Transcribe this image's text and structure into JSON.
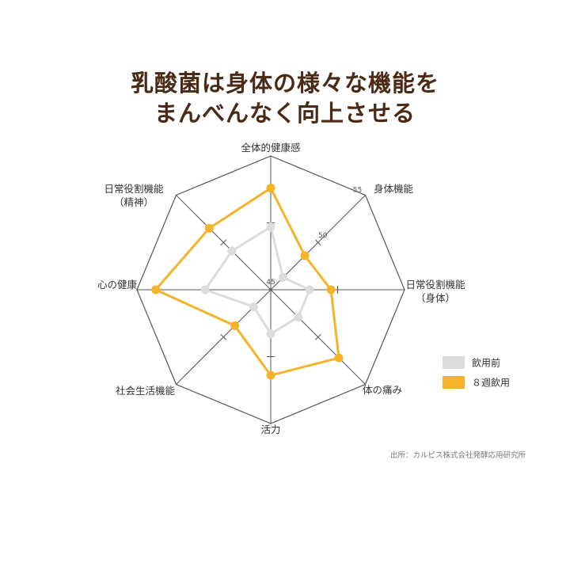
{
  "title": {
    "line1": "乳酸菌は身体の様々な機能を",
    "line2": "まんべんなく向上させる"
  },
  "source": "出所：カルピス株式会社発酵応用研究所",
  "colors": {
    "before": "#dcdcdc",
    "after": "#f5b32a",
    "grid": "#555555",
    "title": "#4a2a14"
  },
  "chart_data": {
    "type": "radar",
    "axes": [
      "全体的健康感",
      "身体機能",
      "日常役割機能\n（身体）",
      "体の痛み",
      "活力",
      "社会生活機能",
      "心の健康",
      "日常役割機能\n（精神）"
    ],
    "range": [
      45,
      55
    ],
    "ticks": [
      "45",
      "50",
      "55"
    ],
    "legend_position": "right",
    "series": [
      {
        "name": "飲用前",
        "values": [
          49.7,
          46.3,
          47.9,
          47.9,
          48.3,
          46.8,
          49.9,
          49.1
        ]
      },
      {
        "name": "８週飲用",
        "values": [
          52.6,
          48.6,
          49.5,
          52.2,
          51.4,
          48.8,
          53.6,
          51.5
        ]
      }
    ]
  }
}
